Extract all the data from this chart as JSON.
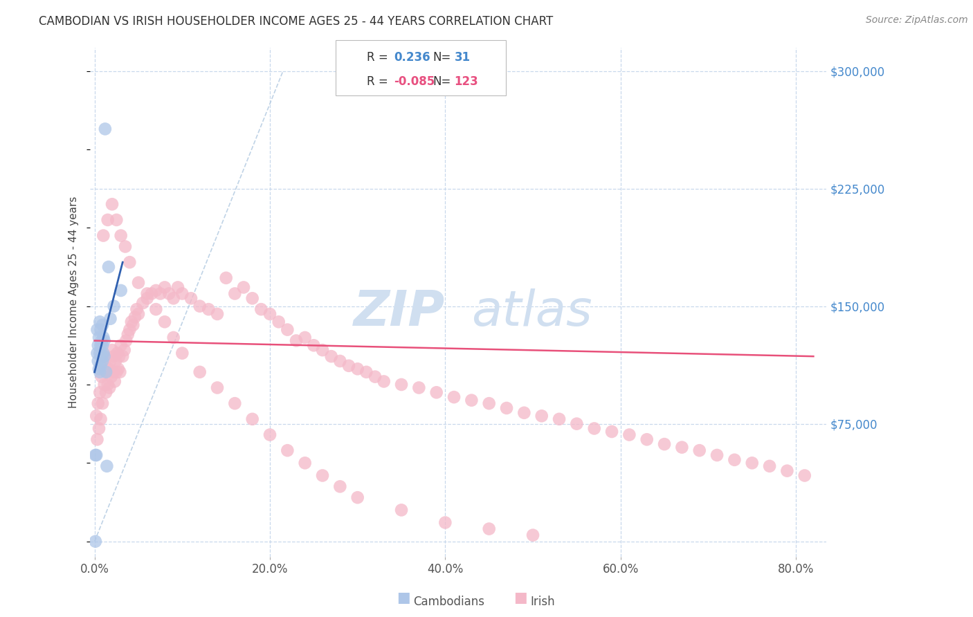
{
  "title": "CAMBODIAN VS IRISH HOUSEHOLDER INCOME AGES 25 - 44 YEARS CORRELATION CHART",
  "source": "Source: ZipAtlas.com",
  "ylabel": "Householder Income Ages 25 - 44 years",
  "xlabel_ticks": [
    "0.0%",
    "20.0%",
    "40.0%",
    "60.0%",
    "80.0%"
  ],
  "xlabel_vals": [
    0.0,
    0.2,
    0.4,
    0.6,
    0.8
  ],
  "ylabel_right_ticks": [
    "$75,000",
    "$150,000",
    "$225,000",
    "$300,000"
  ],
  "ylabel_right_vals": [
    75000,
    150000,
    225000,
    300000
  ],
  "xlim": [
    -0.005,
    0.835
  ],
  "ylim": [
    -10000,
    315000
  ],
  "cambodian_R": 0.236,
  "cambodian_N": 31,
  "irish_R": -0.085,
  "irish_N": 123,
  "cambodian_color": "#aec6e8",
  "irish_color": "#f4b8c8",
  "cambodian_line_color": "#3060b0",
  "irish_line_color": "#e8507a",
  "ref_line_color": "#b0c8e0",
  "background_color": "#ffffff",
  "grid_color": "#c8d8ec",
  "watermark_color": "#d0dff0",
  "cambodian_points_x": [
    0.001,
    0.002,
    0.003,
    0.003,
    0.004,
    0.004,
    0.005,
    0.005,
    0.006,
    0.006,
    0.006,
    0.007,
    0.007,
    0.007,
    0.008,
    0.008,
    0.009,
    0.009,
    0.009,
    0.01,
    0.01,
    0.011,
    0.011,
    0.012,
    0.013,
    0.014,
    0.016,
    0.018,
    0.022,
    0.03,
    0.001
  ],
  "cambodian_points_y": [
    0,
    55000,
    120000,
    135000,
    115000,
    125000,
    110000,
    130000,
    108000,
    120000,
    140000,
    112000,
    125000,
    135000,
    118000,
    128000,
    115000,
    125000,
    138000,
    120000,
    130000,
    118000,
    128000,
    263000,
    108000,
    48000,
    175000,
    142000,
    150000,
    160000,
    55000
  ],
  "irish_points_x": [
    0.002,
    0.003,
    0.004,
    0.005,
    0.006,
    0.007,
    0.008,
    0.009,
    0.01,
    0.011,
    0.012,
    0.013,
    0.014,
    0.015,
    0.016,
    0.017,
    0.018,
    0.019,
    0.02,
    0.021,
    0.022,
    0.023,
    0.024,
    0.025,
    0.026,
    0.027,
    0.028,
    0.029,
    0.03,
    0.032,
    0.034,
    0.036,
    0.038,
    0.04,
    0.042,
    0.044,
    0.046,
    0.048,
    0.05,
    0.055,
    0.06,
    0.065,
    0.07,
    0.075,
    0.08,
    0.085,
    0.09,
    0.095,
    0.1,
    0.11,
    0.12,
    0.13,
    0.14,
    0.15,
    0.16,
    0.17,
    0.18,
    0.19,
    0.2,
    0.21,
    0.22,
    0.23,
    0.24,
    0.25,
    0.26,
    0.27,
    0.28,
    0.29,
    0.3,
    0.31,
    0.32,
    0.33,
    0.35,
    0.37,
    0.39,
    0.41,
    0.43,
    0.45,
    0.47,
    0.49,
    0.51,
    0.53,
    0.55,
    0.57,
    0.59,
    0.61,
    0.63,
    0.65,
    0.67,
    0.69,
    0.71,
    0.73,
    0.75,
    0.77,
    0.79,
    0.81,
    0.01,
    0.015,
    0.02,
    0.025,
    0.03,
    0.035,
    0.04,
    0.05,
    0.06,
    0.07,
    0.08,
    0.09,
    0.1,
    0.12,
    0.14,
    0.16,
    0.18,
    0.2,
    0.22,
    0.24,
    0.26,
    0.28,
    0.3,
    0.35,
    0.4,
    0.45,
    0.5
  ],
  "irish_points_y": [
    80000,
    65000,
    88000,
    72000,
    95000,
    78000,
    105000,
    88000,
    118000,
    100000,
    112000,
    95000,
    108000,
    100000,
    110000,
    98000,
    115000,
    105000,
    122000,
    108000,
    118000,
    102000,
    115000,
    108000,
    120000,
    110000,
    118000,
    108000,
    125000,
    118000,
    122000,
    128000,
    132000,
    135000,
    140000,
    138000,
    143000,
    148000,
    145000,
    152000,
    155000,
    158000,
    160000,
    158000,
    162000,
    158000,
    155000,
    162000,
    158000,
    155000,
    150000,
    148000,
    145000,
    168000,
    158000,
    162000,
    155000,
    148000,
    145000,
    140000,
    135000,
    128000,
    130000,
    125000,
    122000,
    118000,
    115000,
    112000,
    110000,
    108000,
    105000,
    102000,
    100000,
    98000,
    95000,
    92000,
    90000,
    88000,
    85000,
    82000,
    80000,
    78000,
    75000,
    72000,
    70000,
    68000,
    65000,
    62000,
    60000,
    58000,
    55000,
    52000,
    50000,
    48000,
    45000,
    42000,
    195000,
    205000,
    215000,
    205000,
    195000,
    188000,
    178000,
    165000,
    158000,
    148000,
    140000,
    130000,
    120000,
    108000,
    98000,
    88000,
    78000,
    68000,
    58000,
    50000,
    42000,
    35000,
    28000,
    20000,
    12000,
    8000,
    4000
  ]
}
